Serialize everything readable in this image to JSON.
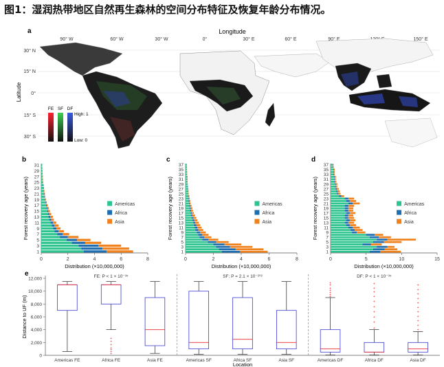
{
  "figure_title": "图1：湿润热带地区自然再生森林的空间分布特征及恢复年龄分布情况。",
  "panel_a": {
    "label": "a",
    "xaxis_title": "Longitude",
    "yaxis_title": "Latitude",
    "lon_ticks": [
      "90° W",
      "60° W",
      "30° W",
      "0°",
      "30° E",
      "60° E",
      "90° E",
      "120° E",
      "150° E"
    ],
    "lat_ticks": [
      "30° N",
      "15° N",
      "0°",
      "15° S",
      "30° S"
    ],
    "legend": {
      "FE": "FE",
      "SF": "SF",
      "DF": "DF",
      "high": "High: 1",
      "low": "Low: 0",
      "colors": {
        "FE": "#e8283a",
        "SF": "#33c24a",
        "DF": "#3456d6"
      }
    }
  },
  "chart_data": [
    {
      "panel": "b",
      "type": "bar",
      "orientation": "horizontal",
      "stacked": true,
      "ylabel": "Forest recovery age (years)",
      "xlabel": "Distribution (×10,000,000)",
      "ytick_labels": [
        "1",
        "3",
        "5",
        "7",
        "9",
        "11",
        "13",
        "15",
        "17",
        "19",
        "21",
        "23",
        "25",
        "27",
        "29",
        "31"
      ],
      "xticks": [
        "0",
        "2",
        "4",
        "6",
        "8"
      ],
      "xlim": [
        0,
        8
      ],
      "categories": [
        1,
        2,
        3,
        4,
        5,
        6,
        7,
        8,
        9,
        10,
        11,
        12,
        13,
        14,
        15,
        16,
        17,
        18,
        19,
        20,
        21,
        22,
        23,
        24,
        25,
        26,
        27,
        28,
        29,
        30,
        31
      ],
      "series": [
        {
          "name": "Americas",
          "color": "#2ec48f",
          "values": [
            3.2,
            3.0,
            2.8,
            2.3,
            1.9,
            1.4,
            1.2,
            1.0,
            0.9,
            0.8,
            0.7,
            0.6,
            0.55,
            0.5,
            0.45,
            0.4,
            0.35,
            0.3,
            0.25,
            0.22,
            0.2,
            0.18,
            0.16,
            0.14,
            0.12,
            0.1,
            0.09,
            0.08,
            0.07,
            0.06,
            0.05
          ]
        },
        {
          "name": "Africa",
          "color": "#1f6fb0",
          "values": [
            1.7,
            1.6,
            1.5,
            1.0,
            0.8,
            0.6,
            0.4,
            0.3,
            0.25,
            0.2,
            0.18,
            0.15,
            0.12,
            0.1,
            0.08,
            0.07,
            0.06,
            0.05,
            0.04,
            0.03,
            0.03,
            0.02,
            0.02,
            0.02,
            0.01,
            0.01,
            0.01,
            0.01,
            0.01,
            0.01,
            0.01
          ]
        },
        {
          "name": "Asia",
          "color": "#f0821e",
          "values": [
            2.0,
            2.0,
            1.7,
            1.2,
            1.0,
            0.8,
            0.5,
            0.4,
            0.3,
            0.3,
            0.25,
            0.2,
            0.2,
            0.15,
            0.12,
            0.1,
            0.08,
            0.07,
            0.06,
            0.05,
            0.05,
            0.04,
            0.03,
            0.03,
            0.02,
            0.02,
            0.02,
            0.01,
            0.01,
            0.01,
            0.01
          ]
        }
      ]
    },
    {
      "panel": "c",
      "type": "bar",
      "orientation": "horizontal",
      "stacked": true,
      "ylabel": "Forest recovery age (years)",
      "xlabel": "Distribution (×10,000,000)",
      "ytick_labels": [
        "1",
        "3",
        "5",
        "7",
        "9",
        "11",
        "13",
        "15",
        "17",
        "19",
        "21",
        "23",
        "25",
        "27",
        "29",
        "31",
        "33",
        "35",
        "37"
      ],
      "xticks": [
        "0",
        "2",
        "4",
        "6",
        "8"
      ],
      "xlim": [
        0,
        8
      ],
      "categories": [
        1,
        2,
        3,
        4,
        5,
        6,
        7,
        8,
        9,
        10,
        11,
        12,
        13,
        14,
        15,
        16,
        17,
        18,
        19,
        20,
        21,
        22,
        23,
        24,
        25,
        26,
        27,
        28,
        29,
        30,
        31,
        32,
        33,
        34,
        35,
        36,
        37
      ],
      "series": [
        {
          "name": "Americas",
          "color": "#2ec48f",
          "values": [
            2.6,
            2.4,
            2.2,
            2.0,
            1.6,
            1.2,
            1.0,
            0.9,
            0.8,
            0.7,
            0.65,
            0.6,
            0.55,
            0.5,
            0.45,
            0.4,
            0.36,
            0.32,
            0.3,
            0.27,
            0.24,
            0.22,
            0.2,
            0.18,
            0.16,
            0.15,
            0.14,
            0.13,
            0.12,
            0.11,
            0.1,
            0.1,
            0.09,
            0.09,
            0.08,
            0.08,
            0.07
          ]
        },
        {
          "name": "Africa",
          "color": "#1f6fb0",
          "values": [
            1.3,
            1.2,
            1.0,
            0.8,
            0.6,
            0.45,
            0.35,
            0.3,
            0.25,
            0.22,
            0.2,
            0.18,
            0.15,
            0.13,
            0.12,
            0.1,
            0.09,
            0.08,
            0.07,
            0.06,
            0.05,
            0.05,
            0.04,
            0.04,
            0.03,
            0.03,
            0.03,
            0.02,
            0.02,
            0.02,
            0.02,
            0.02,
            0.01,
            0.01,
            0.01,
            0.01,
            0.01
          ]
        },
        {
          "name": "Asia",
          "color": "#f0821e",
          "values": [
            2.0,
            2.0,
            1.6,
            1.2,
            0.9,
            0.7,
            0.5,
            0.45,
            0.4,
            0.35,
            0.3,
            0.27,
            0.25,
            0.22,
            0.2,
            0.18,
            0.15,
            0.13,
            0.12,
            0.1,
            0.08,
            0.07,
            0.06,
            0.05,
            0.04,
            0.04,
            0.03,
            0.03,
            0.02,
            0.02,
            0.02,
            0.02,
            0.01,
            0.01,
            0.01,
            0.01,
            0.01
          ]
        }
      ]
    },
    {
      "panel": "d",
      "type": "bar",
      "orientation": "horizontal",
      "stacked": true,
      "ylabel": "Forest recovery age (years)",
      "xlabel": "Distribution (×10,000,000)",
      "ytick_labels": [
        "1",
        "3",
        "5",
        "7",
        "9",
        "11",
        "13",
        "15",
        "17",
        "19",
        "21",
        "23",
        "25",
        "27",
        "29",
        "31",
        "33",
        "35",
        "37"
      ],
      "xticks": [
        "0",
        "5",
        "10",
        "15"
      ],
      "xlim": [
        0,
        15
      ],
      "categories": [
        1,
        2,
        3,
        4,
        5,
        6,
        7,
        8,
        9,
        10,
        11,
        12,
        13,
        14,
        15,
        16,
        17,
        18,
        19,
        20,
        21,
        22,
        23,
        24,
        25,
        26,
        27,
        28,
        29,
        30,
        31,
        32,
        33,
        34,
        35,
        36,
        37
      ],
      "series": [
        {
          "name": "Americas",
          "color": "#2ec48f",
          "values": [
            5.5,
            6.0,
            6.5,
            4.5,
            6.0,
            6.5,
            5.5,
            5.0,
            3.0,
            2.8,
            2.5,
            2.2,
            2.0,
            2.2,
            2.0,
            2.0,
            2.2,
            2.0,
            2.0,
            2.0,
            2.5,
            2.2,
            2.0,
            1.2,
            0.9,
            0.8,
            0.7,
            0.6,
            0.6,
            0.5,
            0.5,
            0.5,
            0.4,
            0.4,
            0.4,
            0.3,
            0.3
          ]
        },
        {
          "name": "Africa",
          "color": "#1f6fb0",
          "values": [
            1.5,
            1.6,
            1.5,
            1.2,
            1.5,
            1.5,
            1.3,
            1.2,
            0.7,
            0.6,
            0.6,
            0.5,
            0.5,
            0.5,
            0.5,
            0.5,
            0.5,
            0.5,
            0.5,
            0.5,
            0.6,
            0.5,
            0.5,
            0.3,
            0.2,
            0.2,
            0.2,
            0.15,
            0.15,
            0.1,
            0.1,
            0.1,
            0.1,
            0.1,
            0.08,
            0.06,
            0.05
          ]
        },
        {
          "name": "Asia",
          "color": "#f0821e",
          "values": [
            2.9,
            1.8,
            1.0,
            1.5,
            2.5,
            4.0,
            1.7,
            1.2,
            1.2,
            1.1,
            1.0,
            0.9,
            0.8,
            0.8,
            0.8,
            0.7,
            0.8,
            0.7,
            0.7,
            0.8,
            1.0,
            0.9,
            0.8,
            0.4,
            0.3,
            0.3,
            0.25,
            0.2,
            0.2,
            0.2,
            0.15,
            0.15,
            0.1,
            0.1,
            0.1,
            0.1,
            0.08
          ]
        }
      ]
    },
    {
      "panel": "e",
      "type": "box",
      "ylabel": "Distance to UF (m)",
      "xlabel": "Location",
      "ylim": [
        0,
        12000
      ],
      "yticks": [
        "0",
        "2,000",
        "4,000",
        "6,000",
        "8,000",
        "10,000",
        "12,000"
      ],
      "group_titles": [
        "FE: P < 1 × 10⁻³⁵",
        "SF: P = 2.1 × 10⁻²⁰²",
        "DF: P < 1 × 10⁻³⁵"
      ],
      "categories": [
        "Americas FE",
        "Africa FE",
        "Asia FE",
        "Americas SF",
        "Africa SF",
        "Asia SF",
        "Americas DF",
        "Africa DF",
        "Asia DF"
      ],
      "boxes": [
        {
          "min": 600,
          "q1": 7000,
          "median": 11000,
          "q3": 11000,
          "max": 11500
        },
        {
          "min": 4000,
          "q1": 8000,
          "median": 11000,
          "q3": 11000,
          "max": 11500
        },
        {
          "min": 300,
          "q1": 1500,
          "median": 4000,
          "q3": 9000,
          "max": 11500
        },
        {
          "min": 150,
          "q1": 1000,
          "median": 2000,
          "q3": 10000,
          "max": 11500
        },
        {
          "min": 150,
          "q1": 1000,
          "median": 2500,
          "q3": 9000,
          "max": 11500
        },
        {
          "min": 150,
          "q1": 1000,
          "median": 2000,
          "q3": 7000,
          "max": 11500
        },
        {
          "min": 50,
          "q1": 500,
          "median": 1000,
          "q3": 4000,
          "max": 9000
        },
        {
          "min": 50,
          "q1": 500,
          "median": 500,
          "q3": 2000,
          "max": 4000
        },
        {
          "min": 50,
          "q1": 500,
          "median": 1000,
          "q3": 2000,
          "max": 3700
        }
      ],
      "outliers": [
        [],
        [
          2700,
          2200,
          1700,
          1200,
          900,
          600,
          300
        ],
        [],
        [],
        [],
        [],
        [
          9200,
          9500,
          9800,
          10200,
          10500,
          11000,
          11300
        ],
        [
          4300,
          5200,
          6000,
          6800,
          7600,
          8400,
          9200,
          9900,
          10500,
          11200
        ],
        [
          4000,
          4700,
          5400,
          6100,
          6800,
          7500,
          8200,
          8900,
          9600,
          10300,
          11000
        ]
      ]
    }
  ]
}
